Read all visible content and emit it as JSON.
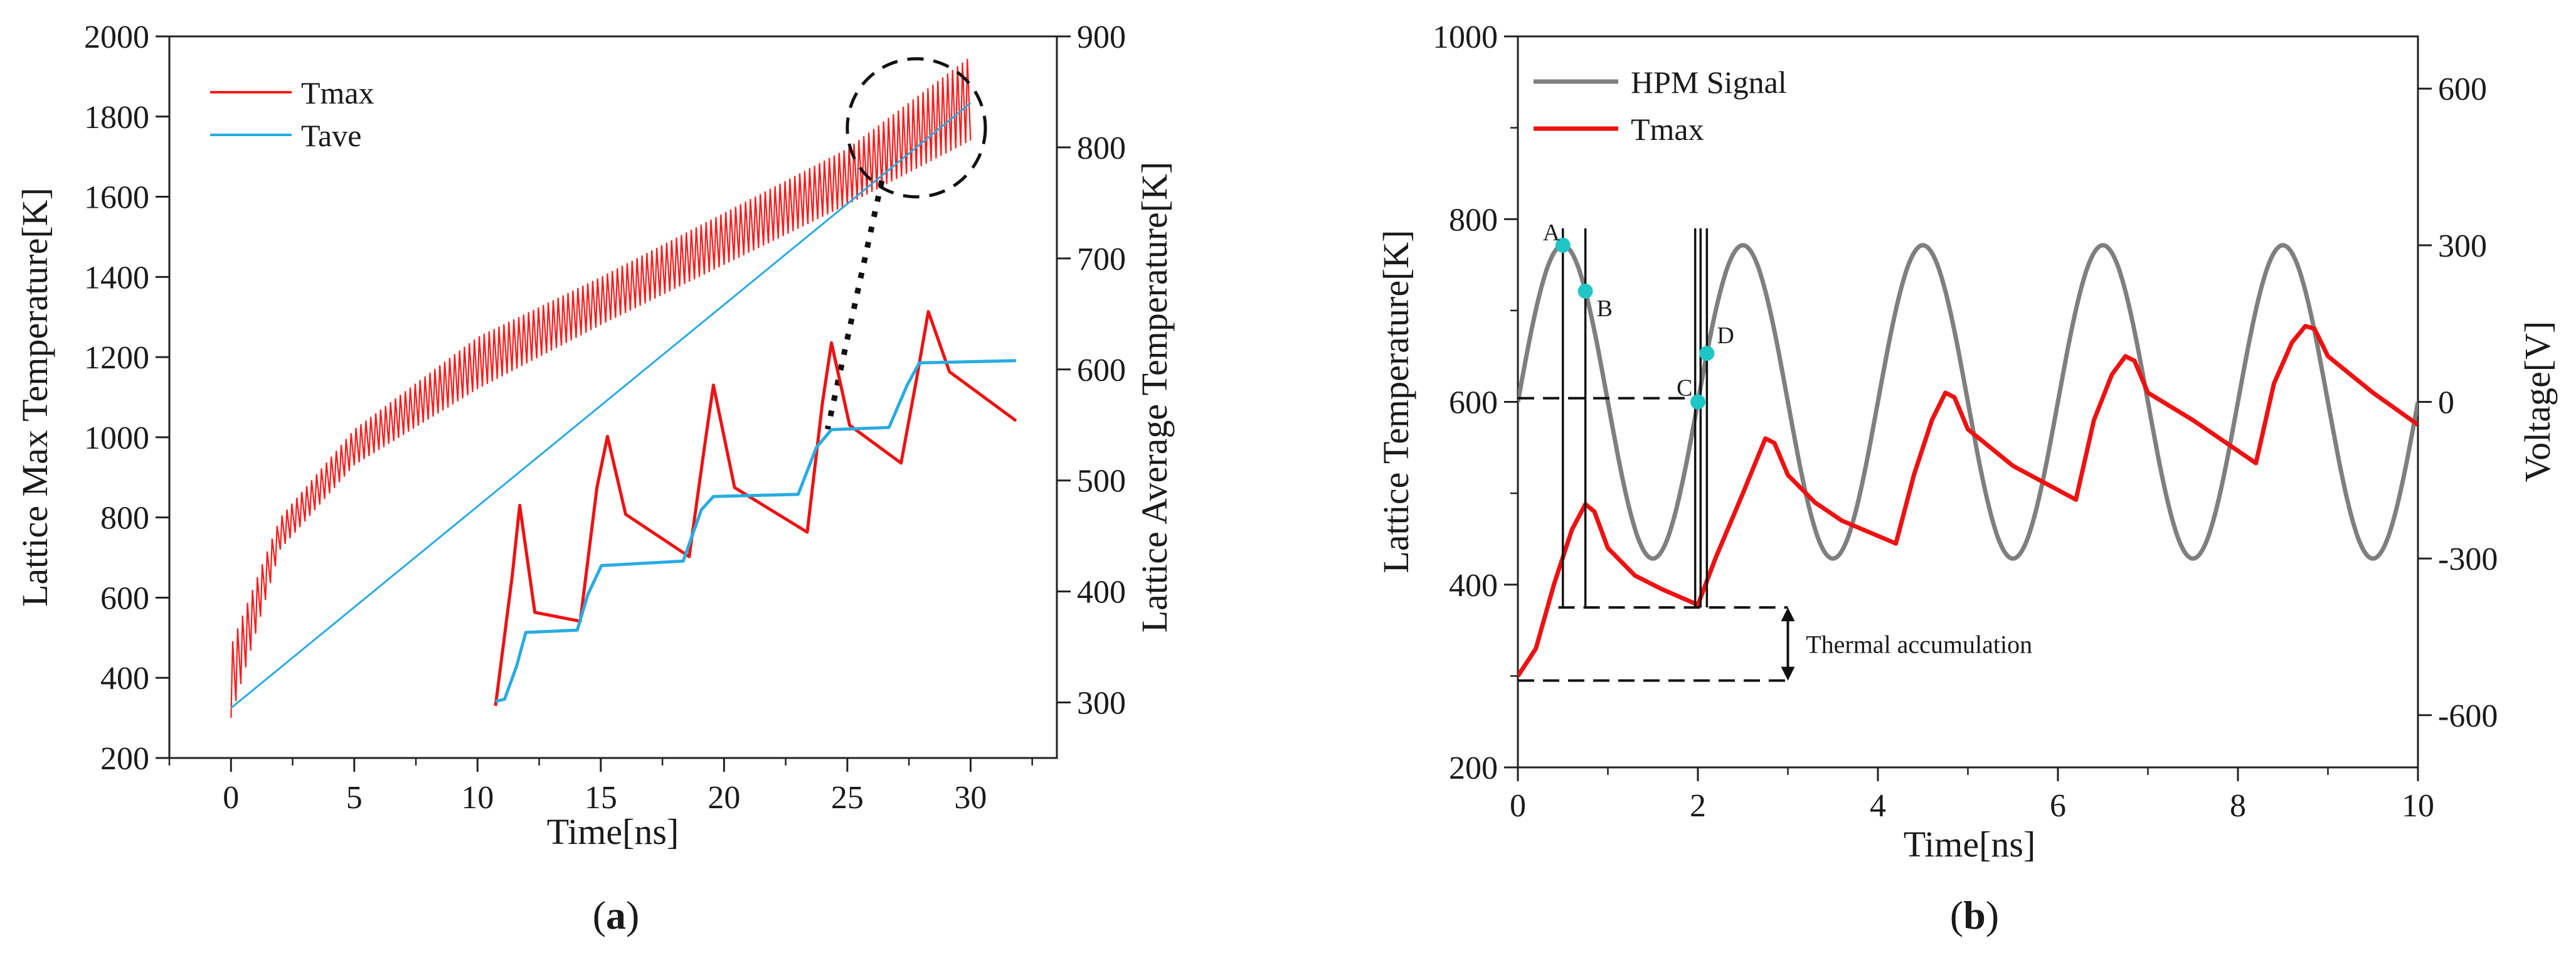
{
  "chart_data": [
    {
      "type": "line",
      "id": "a",
      "caption": {
        "open": "(",
        "letter": "a",
        "close": ")"
      },
      "xlabel": "Time[ns]",
      "ylabel": "Lattice Max Temperature[K]",
      "y2label": "Lattice Average Temperature[K]",
      "xlim": [
        -2.5,
        33.5
      ],
      "ylim": [
        200,
        2000
      ],
      "y2lim": [
        250,
        900
      ],
      "x_ticks": [
        0,
        5,
        10,
        15,
        20,
        25,
        30
      ],
      "y_ticks": [
        200,
        400,
        600,
        800,
        1000,
        1200,
        1400,
        1600,
        1800,
        2000
      ],
      "y2_ticks": [
        300,
        400,
        500,
        600,
        700,
        800,
        900
      ],
      "legend": {
        "position": "top-left",
        "entries": [
          "Tmax",
          "Tave"
        ]
      },
      "series": [
        {
          "name": "Tmax",
          "color": "#ff1a1a",
          "axis": "left",
          "style": "oscillating",
          "period": 0.2,
          "x_range": [
            0,
            30
          ],
          "envelope_low": [
            [
              0,
              300
            ],
            [
              2,
              720
            ],
            [
              5,
              930
            ],
            [
              10,
              1120
            ],
            [
              15,
              1280
            ],
            [
              20,
              1430
            ],
            [
              25,
              1580
            ],
            [
              30,
              1740
            ]
          ],
          "envelope_high": [
            [
              0,
              480
            ],
            [
              2,
              800
            ],
            [
              5,
              1020
            ],
            [
              10,
              1250
            ],
            [
              15,
              1400
            ],
            [
              20,
              1560
            ],
            [
              25,
              1720
            ],
            [
              30,
              1950
            ]
          ]
        },
        {
          "name": "Tave",
          "color": "#29abe2",
          "axis": "right",
          "points": [
            [
              0,
              295
            ],
            [
              30,
              840
            ]
          ]
        }
      ],
      "annotations": [
        {
          "type": "dashed_circle",
          "center": [
            27.8,
            1772
          ],
          "radius_x": 2.8
        },
        {
          "type": "dotted_leader",
          "from": [
            26.4,
            1640
          ],
          "to": [
            24.2,
            1020
          ]
        },
        {
          "type": "inset_zoom",
          "note": "zoom of the last pulses",
          "tmax": [
            [
              0,
              330
            ],
            [
              0.55,
              620
            ],
            [
              0.8,
              780
            ],
            [
              1.3,
              540
            ],
            [
              2.8,
              520
            ],
            [
              3.35,
              820
            ],
            [
              3.7,
              935
            ],
            [
              4.3,
              760
            ],
            [
              6.4,
              665
            ],
            [
              6.9,
              910
            ],
            [
              7.2,
              1050
            ],
            [
              7.9,
              820
            ],
            [
              10.3,
              720
            ],
            [
              10.8,
              1010
            ],
            [
              11.1,
              1145
            ],
            [
              11.7,
              960
            ],
            [
              13.4,
              875
            ],
            [
              13.9,
              1060
            ],
            [
              14.3,
              1215
            ],
            [
              15.0,
              1080
            ],
            [
              17.2,
              970
            ]
          ],
          "tave": [
            [
              0,
              340
            ],
            [
              0.3,
              345
            ],
            [
              0.7,
              420
            ],
            [
              1.0,
              495
            ],
            [
              2.7,
              500
            ],
            [
              3.05,
              580
            ],
            [
              3.5,
              645
            ],
            [
              6.2,
              655
            ],
            [
              6.8,
              770
            ],
            [
              7.2,
              800
            ],
            [
              10.0,
              805
            ],
            [
              10.6,
              910
            ],
            [
              11.1,
              950
            ],
            [
              13.0,
              955
            ],
            [
              13.6,
              1050
            ],
            [
              14.0,
              1100
            ],
            [
              17.2,
              1105
            ]
          ]
        }
      ]
    },
    {
      "type": "line",
      "id": "b",
      "caption": {
        "open": "(",
        "letter": "b",
        "close": ")"
      },
      "xlabel": "Time[ns]",
      "ylabel": "Lattice Temperature[K]",
      "y2label": "Voltage[V]",
      "xlim": [
        0,
        10
      ],
      "ylim": [
        200,
        1000
      ],
      "y2lim": [
        -700,
        700
      ],
      "x_ticks": [
        0,
        2,
        4,
        6,
        8,
        10
      ],
      "y_ticks": [
        200,
        400,
        600,
        800,
        1000
      ],
      "y2_ticks": [
        -600,
        -300,
        0,
        300,
        600
      ],
      "y2_tick_labels": [
        "-600",
        "-300",
        "0",
        "300",
        "600"
      ],
      "legend": {
        "position": "top-left",
        "entries": [
          "HPM Signal",
          "Tmax"
        ]
      },
      "series": [
        {
          "name": "HPM Signal",
          "color": "#7f7f7f",
          "axis": "right",
          "style": "sine",
          "amplitude": 300,
          "period": 2,
          "offset": 0,
          "x_range": [
            0,
            10
          ]
        },
        {
          "name": "Tmax",
          "color": "#ee1111",
          "axis": "left",
          "points": [
            [
              0,
              300
            ],
            [
              0.2,
              330
            ],
            [
              0.4,
              400
            ],
            [
              0.6,
              460
            ],
            [
              0.75,
              488
            ],
            [
              0.85,
              480
            ],
            [
              1.0,
              440
            ],
            [
              1.3,
              410
            ],
            [
              1.6,
              395
            ],
            [
              2.0,
              378
            ],
            [
              2.2,
              430
            ],
            [
              2.5,
              500
            ],
            [
              2.75,
              560
            ],
            [
              2.85,
              555
            ],
            [
              3.0,
              520
            ],
            [
              3.3,
              490
            ],
            [
              3.6,
              470
            ],
            [
              4.2,
              445
            ],
            [
              4.4,
              520
            ],
            [
              4.6,
              580
            ],
            [
              4.75,
              610
            ],
            [
              4.85,
              605
            ],
            [
              5.0,
              570
            ],
            [
              5.5,
              530
            ],
            [
              6.2,
              493
            ],
            [
              6.4,
              580
            ],
            [
              6.6,
              630
            ],
            [
              6.75,
              650
            ],
            [
              6.85,
              645
            ],
            [
              7.0,
              610
            ],
            [
              7.5,
              580
            ],
            [
              8.2,
              533
            ],
            [
              8.4,
              620
            ],
            [
              8.6,
              665
            ],
            [
              8.75,
              683
            ],
            [
              8.85,
              680
            ],
            [
              9.0,
              650
            ],
            [
              9.5,
              610
            ],
            [
              10.0,
              575
            ]
          ]
        }
      ],
      "markers": [
        {
          "label": "A",
          "x": 0.5,
          "y_right": 300
        },
        {
          "label": "B",
          "x": 0.75,
          "y_right": 212
        },
        {
          "label": "C",
          "x": 2.0,
          "y_right": 0
        },
        {
          "label": "D",
          "x": 2.1,
          "y_right": 93
        }
      ],
      "vertical_lines": [
        0.5,
        0.75,
        1.97,
        2.03,
        2.1
      ],
      "annotations": [
        {
          "type": "dashed_hline",
          "y": 604,
          "x_range": [
            0,
            2.0
          ]
        },
        {
          "type": "dashed_hline",
          "y": 375,
          "x_range": [
            0.45,
            3.0
          ]
        },
        {
          "type": "dashed_hline",
          "y": 295,
          "x_range": [
            0,
            3.0
          ]
        },
        {
          "type": "double_arrow",
          "x": 3.0,
          "y_range": [
            295,
            375
          ]
        },
        {
          "type": "text",
          "text": "Thermal accumulation",
          "x": 3.2,
          "y": 335
        }
      ]
    }
  ]
}
